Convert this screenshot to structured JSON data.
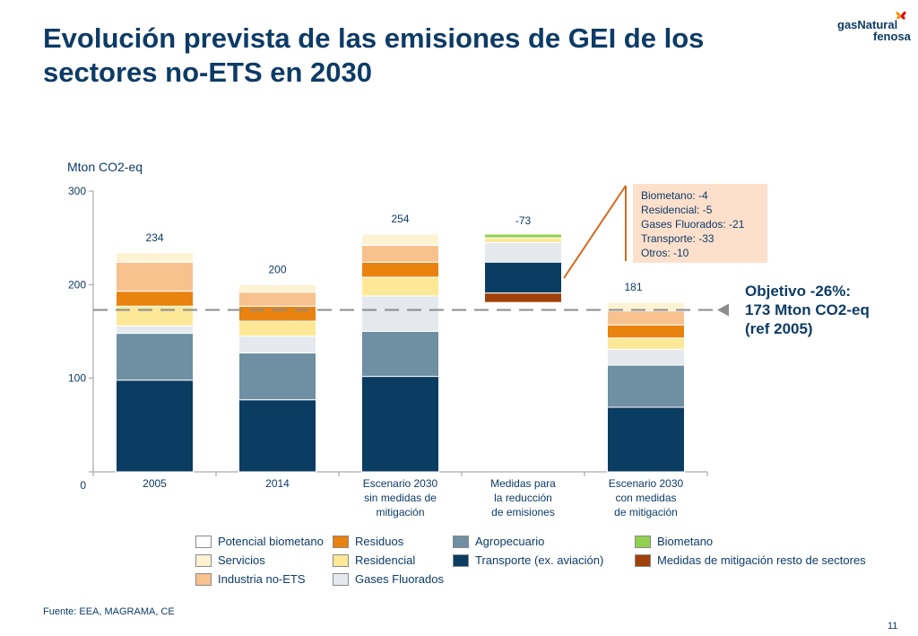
{
  "title": "Evolución prevista de las emisiones de GEI de los sectores no-ETS en 2030",
  "logo": {
    "line1": "gasNatural",
    "line2": "fenosa"
  },
  "chart_data": {
    "type": "bar",
    "subtype": "stacked-waterfall",
    "ylabel": "Mton CO2-eq",
    "ylim": [
      0,
      300
    ],
    "yticks": [
      0,
      100,
      200,
      300
    ],
    "grid": false,
    "categories": [
      [
        "2005"
      ],
      [
        "2014"
      ],
      [
        "Escenario 2030",
        "sin medidas de",
        "mitigación"
      ],
      [
        "Medidas para",
        "la reducción",
        "de emisiones"
      ],
      [
        "Escenario 2030",
        "con medidas",
        "de mitigación"
      ]
    ],
    "totals": [
      "234",
      "200",
      "254",
      "-73",
      "181"
    ],
    "series": [
      {
        "name": "Transporte (ex. aviación)",
        "color": "#0b3c61",
        "values": [
          98,
          77,
          102,
          0,
          69
        ]
      },
      {
        "name": "Agropecuario",
        "color": "#6f8fa3",
        "values": [
          50,
          50,
          48,
          0,
          45
        ]
      },
      {
        "name": "Gases Fluorados",
        "color": "#e5e9ee",
        "values": [
          8,
          18,
          38,
          0,
          17
        ]
      },
      {
        "name": "Residencial",
        "color": "#fde897",
        "values": [
          21,
          16,
          20,
          0,
          12
        ]
      },
      {
        "name": "Residuos",
        "color": "#e9820f",
        "values": [
          16,
          16,
          16,
          0,
          14
        ]
      },
      {
        "name": "Industria no-ETS",
        "color": "#f7c28e",
        "values": [
          31,
          15,
          18,
          0,
          15
        ]
      },
      {
        "name": "Servicios",
        "color": "#fdf3d3",
        "values": [
          10,
          8,
          12,
          0,
          9
        ]
      },
      {
        "name": "Potencial biometano",
        "color": "#ffffff",
        "values": [
          0,
          0,
          0,
          0,
          0
        ]
      }
    ],
    "reduction_bar": {
      "top": 254,
      "segments": [
        {
          "name": "Biometano",
          "color": "#92d050",
          "value": 4
        },
        {
          "name": "Residencial",
          "color": "#fde897",
          "value": 5
        },
        {
          "name": "Gases Fluorados",
          "color": "#e5e9ee",
          "value": 21
        },
        {
          "name": "Transporte (ex. aviación)",
          "color": "#0b3c61",
          "value": 33
        },
        {
          "name": "Medidas de mitigación resto de sectores",
          "color": "#a0400b",
          "value": 10
        }
      ]
    },
    "target_line": {
      "value": 173,
      "label": [
        "Objetivo -26%:",
        "173 Mton CO2-eq",
        " (ref  2005)"
      ]
    },
    "callout": [
      "Biometano: -4",
      "Residencial: -5",
      "Gases Fluorados: -21",
      "Transporte: -33",
      "Otros: -10"
    ],
    "legend": [
      {
        "name": "Potencial biometano",
        "color": "#ffffff"
      },
      {
        "name": "Servicios",
        "color": "#fdf3d3"
      },
      {
        "name": "Industria no-ETS",
        "color": "#f7c28e"
      },
      {
        "name": "Residuos",
        "color": "#e9820f"
      },
      {
        "name": "Residencial",
        "color": "#fde897"
      },
      {
        "name": "Gases Fluorados",
        "color": "#e5e9ee"
      },
      {
        "name": "Agropecuario",
        "color": "#6f8fa3"
      },
      {
        "name": "Transporte (ex. aviación)",
        "color": "#0b3c61"
      },
      {
        "name": "Biometano",
        "color": "#92d050"
      },
      {
        "name": "Medidas de mitigación resto de sectores",
        "color": "#a0400b"
      }
    ]
  },
  "source": "Fuente: EEA, MAGRAMA, CE",
  "page_number": "11",
  "colors": {
    "title": "#0d3b66",
    "callout_bg": "#fde0cc",
    "connector": "#d46a1a",
    "target_line": "#8c8c8c"
  }
}
